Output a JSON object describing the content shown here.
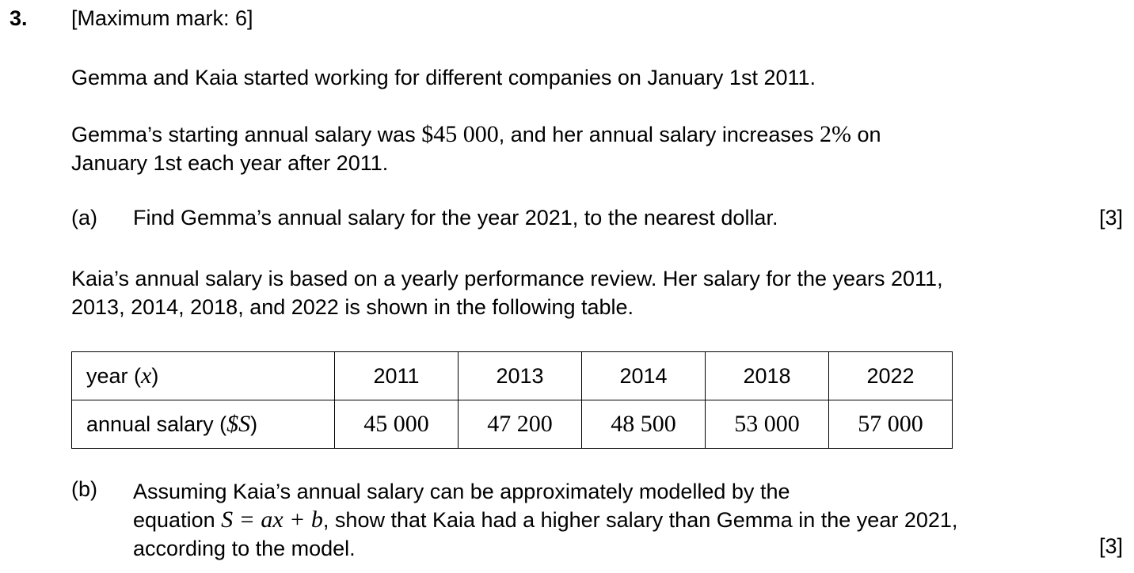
{
  "question": {
    "number": "3.",
    "max_mark": "[Maximum mark: 6]",
    "intro": "Gemma and Kaia started working for different companies on January 1st 2011.",
    "gemma_line1_a": "Gemma’s starting annual salary was ",
    "gemma_salary": "$45 000",
    "gemma_line1_b": ", and her annual salary increases ",
    "gemma_rate": "2%",
    "gemma_line1_c": " on",
    "gemma_line2": "January 1st each year after 2011.",
    "part_a": {
      "label": "(a)",
      "text": "Find Gemma’s annual salary for the year 2021, to the nearest dollar.",
      "marks": "[3]"
    },
    "kaia_line1": "Kaia’s annual salary is based on a yearly performance review. Her salary for the years 2011,",
    "kaia_line2": "2013, 2014, 2018, and 2022 is shown in the following table.",
    "table": {
      "row1_label": "year (",
      "row1_var": "x",
      "row1_close": ")",
      "row2_label": "annual salary (",
      "row2_var": "$S",
      "row2_close": ")",
      "years": [
        "2011",
        "2013",
        "2014",
        "2018",
        "2022"
      ],
      "salaries": [
        "45 000",
        "47 200",
        "48 500",
        "53 000",
        "57 000"
      ]
    },
    "part_b": {
      "label": "(b)",
      "line1": "Assuming Kaia’s annual salary can be approximately modelled by the",
      "line2_a": "equation ",
      "equation": "S = ax + b",
      "line2_b": ", show that Kaia had a higher salary than Gemma in the year 2021,",
      "line3": "according to the model.",
      "marks": "[3]"
    }
  }
}
